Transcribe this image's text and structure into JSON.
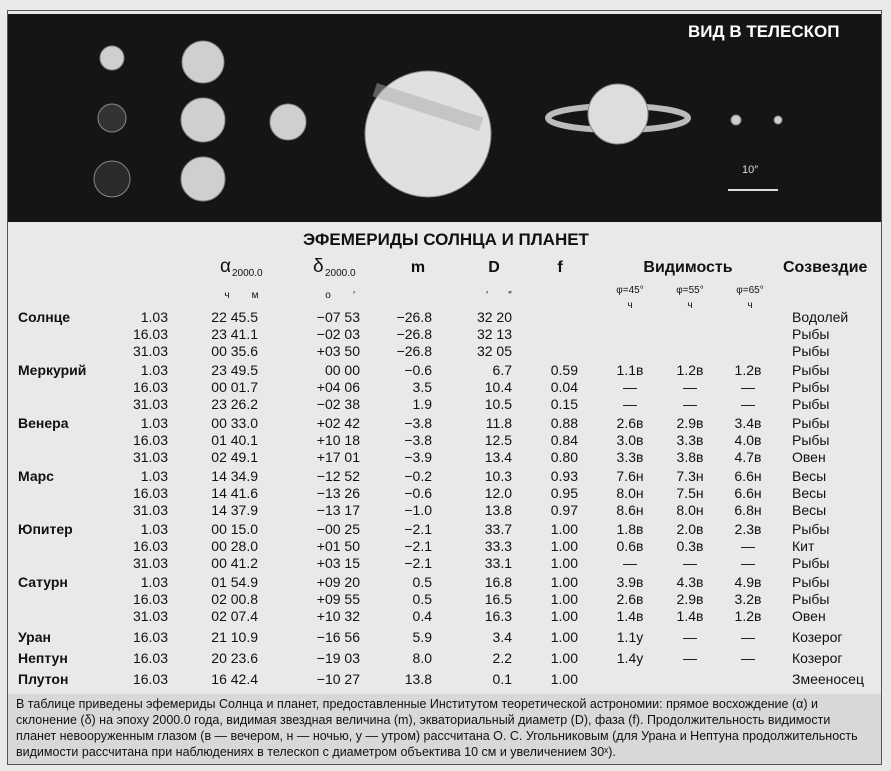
{
  "header": {
    "title": "ВИД В ТЕЛЕСКОП",
    "scale": "10″"
  },
  "table": {
    "title": "ЭФЕМЕРИДЫ СОЛНЦА И ПЛАНЕТ",
    "columns": {
      "ra": {
        "symbol": "α",
        "epoch": "2000.0",
        "units": [
          "ч",
          "м"
        ]
      },
      "dec": {
        "symbol": "δ",
        "epoch": "2000.0",
        "units": [
          "о",
          "′"
        ]
      },
      "m": "m",
      "d": {
        "symbol": "D",
        "units": [
          "′",
          "″"
        ]
      },
      "f": "f",
      "visibility": {
        "title": "Видимость",
        "latitudes": [
          "φ=45°",
          "φ=55°",
          "φ=65°"
        ],
        "unit": "ч"
      },
      "constellation": "Созвездие"
    },
    "planets": [
      {
        "name": "Солнце",
        "rows": [
          [
            "1.03",
            "22 45.5",
            "−07 53",
            "−26.8",
            "32 20",
            null,
            null,
            null,
            null,
            "Водолей"
          ],
          [
            "16.03",
            "23 41.1",
            "−02 03",
            "−26.8",
            "32 13",
            null,
            null,
            null,
            null,
            "Рыбы"
          ],
          [
            "31.03",
            "00 35.6",
            "+03 50",
            "−26.8",
            "32 05",
            null,
            null,
            null,
            null,
            "Рыбы"
          ]
        ]
      },
      {
        "name": "Меркурий",
        "rows": [
          [
            "1.03",
            "23 49.5",
            "00 00",
            "−0.6",
            "6.7",
            "0.59",
            "1.1в",
            "1.2в",
            "1.2в",
            "Рыбы"
          ],
          [
            "16.03",
            "00 01.7",
            "+04 06",
            "3.5",
            "10.4",
            "0.04",
            "—",
            "—",
            "—",
            "Рыбы"
          ],
          [
            "31.03",
            "23 26.2",
            "−02 38",
            "1.9",
            "10.5",
            "0.15",
            "—",
            "—",
            "—",
            "Рыбы"
          ]
        ]
      },
      {
        "name": "Венера",
        "rows": [
          [
            "1.03",
            "00 33.0",
            "+02 42",
            "−3.8",
            "11.8",
            "0.88",
            "2.6в",
            "2.9в",
            "3.4в",
            "Рыбы"
          ],
          [
            "16.03",
            "01 40.1",
            "+10 18",
            "−3.8",
            "12.5",
            "0.84",
            "3.0в",
            "3.3в",
            "4.0в",
            "Рыбы"
          ],
          [
            "31.03",
            "02 49.1",
            "+17 01",
            "−3.9",
            "13.4",
            "0.80",
            "3.3в",
            "3.8в",
            "4.7в",
            "Овен"
          ]
        ]
      },
      {
        "name": "Марс",
        "rows": [
          [
            "1.03",
            "14 34.9",
            "−12 52",
            "−0.2",
            "10.3",
            "0.93",
            "7.6н",
            "7.3н",
            "6.6н",
            "Весы"
          ],
          [
            "16.03",
            "14 41.6",
            "−13 26",
            "−0.6",
            "12.0",
            "0.95",
            "8.0н",
            "7.5н",
            "6.6н",
            "Весы"
          ],
          [
            "31.03",
            "14 37.9",
            "−13 17",
            "−1.0",
            "13.8",
            "0.97",
            "8.6н",
            "8.0н",
            "6.8н",
            "Весы"
          ]
        ]
      },
      {
        "name": "Юпитер",
        "rows": [
          [
            "1.03",
            "00 15.0",
            "−00 25",
            "−2.1",
            "33.7",
            "1.00",
            "1.8в",
            "2.0в",
            "2.3в",
            "Рыбы"
          ],
          [
            "16.03",
            "00 28.0",
            "+01 50",
            "−2.1",
            "33.3",
            "1.00",
            "0.6в",
            "0.3в",
            "—",
            "Кит"
          ],
          [
            "31.03",
            "00 41.2",
            "+03 15",
            "−2.1",
            "33.1",
            "1.00",
            "—",
            "—",
            "—",
            "Рыбы"
          ]
        ]
      },
      {
        "name": "Сатурн",
        "rows": [
          [
            "1.03",
            "01 54.9",
            "+09 20",
            "0.5",
            "16.8",
            "1.00",
            "3.9в",
            "4.3в",
            "4.9в",
            "Рыбы"
          ],
          [
            "16.03",
            "02 00.8",
            "+09 55",
            "0.5",
            "16.5",
            "1.00",
            "2.6в",
            "2.9в",
            "3.2в",
            "Рыбы"
          ],
          [
            "31.03",
            "02 07.4",
            "+10 32",
            "0.4",
            "16.3",
            "1.00",
            "1.4в",
            "1.4в",
            "1.2в",
            "Овен"
          ]
        ]
      },
      {
        "name": "Уран",
        "rows": [
          [
            "16.03",
            "21 10.9",
            "−16 56",
            "5.9",
            "3.4",
            "1.00",
            "1.1у",
            "—",
            "—",
            "Козерог"
          ]
        ]
      },
      {
        "name": "Нептун",
        "rows": [
          [
            "16.03",
            "20 23.6",
            "−19 03",
            "8.0",
            "2.2",
            "1.00",
            "1.4у",
            "—",
            "—",
            "Козерог"
          ]
        ]
      },
      {
        "name": "Плутон",
        "rows": [
          [
            "16.03",
            "16 42.4",
            "−10 27",
            "13.8",
            "0.1",
            "1.00",
            null,
            null,
            null,
            "Змееносец"
          ]
        ]
      }
    ]
  },
  "footnote": "В таблице приведены эфемериды Солнца и планет, предоставленные Институтом теоретической астрономии: прямое восхождение (α) и склонение (δ) на эпоху 2000.0 года, видимая звездная величина (m), экваториальный диаметр (D), фаза (f). Продолжительность видимости планет невооруженным глазом (в — вечером, н — ночью, у — утром) рассчитана О. С. Угольниковым (для Урана и Нептуна продолжительность видимости рассчитана при наблюдениях в телескоп с диаметром объектива 10 см и увеличением 30ˣ)."
}
